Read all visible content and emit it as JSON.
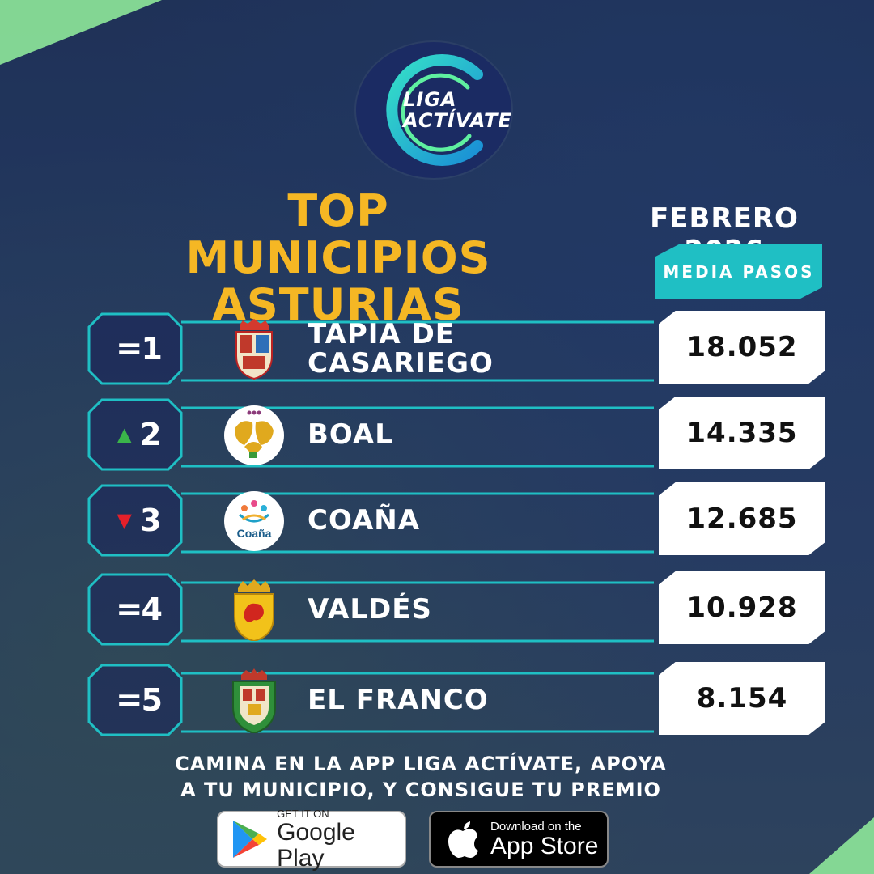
{
  "logo": {
    "line1": "LIGA",
    "line2": "ACTÍVATE"
  },
  "title": {
    "line1": "TOP MUNICIPIOS",
    "line2": "ASTURIAS"
  },
  "period": "FEBRERO 2026",
  "column_label": "MEDIA PASOS",
  "rows": [
    {
      "trend_symbol": "=",
      "trend": "same",
      "rank": "1",
      "name_line1": "TAPIA DE",
      "name_line2": "CASARIEGO",
      "value": "18.052",
      "crest": "tapia-crest-icon"
    },
    {
      "trend_symbol": "▲",
      "trend": "up",
      "rank": "2",
      "name_line1": "BOAL",
      "name_line2": "",
      "value": "14.335",
      "crest": "boal-logo-icon"
    },
    {
      "trend_symbol": "▼",
      "trend": "down",
      "rank": "3",
      "name_line1": "COAÑA",
      "name_line2": "",
      "value": "12.685",
      "crest": "coana-logo-icon",
      "crest_text": "Coaña"
    },
    {
      "trend_symbol": "=",
      "trend": "same",
      "rank": "4",
      "name_line1": "VALDÉS",
      "name_line2": "",
      "value": "10.928",
      "crest": "valdes-crest-icon"
    },
    {
      "trend_symbol": "=",
      "trend": "same",
      "rank": "5",
      "name_line1": "EL FRANCO",
      "name_line2": "",
      "value": "8.154",
      "crest": "el-franco-crest-icon"
    }
  ],
  "footer": {
    "line1": "CAMINA EN LA APP LIGA ACTÍVATE, APOYA",
    "line2": "A TU MUNICIPIO, Y CONSIGUE TU PREMIO"
  },
  "stores": {
    "google": {
      "small": "GET IT ON",
      "big": "Google Play"
    },
    "apple": {
      "small": "Download on the",
      "big": "App Store"
    }
  },
  "colors": {
    "title": "#f5b724",
    "accent": "#1fbfc4",
    "up": "#3ab54a",
    "down": "#e5202a",
    "corner": "#8ee89a"
  }
}
